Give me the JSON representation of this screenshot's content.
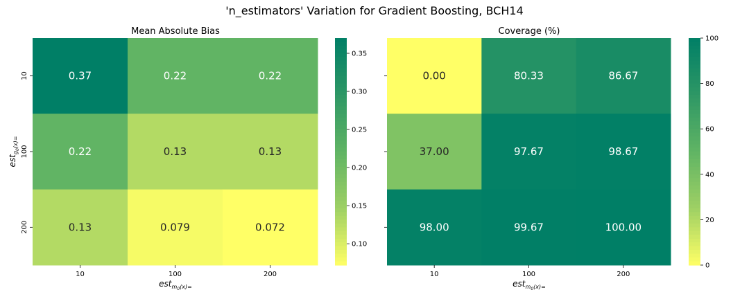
{
  "suptitle": "'n_estimators' Variation for Gradient Boosting, BCH14",
  "shared": {
    "x_label_main": "est",
    "x_label_sub": "m",
    "x_label_subsub": "0",
    "x_label_suffix": "(x)=",
    "y_label_main": "est",
    "y_label_sub": "g",
    "y_label_subsub": "0",
    "y_label_suffix": "(x)="
  },
  "colormap": [
    "#ffff66",
    "#9ed064",
    "#60b464",
    "#2e9765",
    "#007f66"
  ],
  "chart_data": [
    {
      "type": "heatmap",
      "title": "Mean Absolute Bias",
      "x_ticks": [
        "10",
        "100",
        "200"
      ],
      "y_ticks": [
        "10",
        "100",
        "200"
      ],
      "values": [
        [
          0.37,
          0.22,
          0.22
        ],
        [
          0.22,
          0.13,
          0.13
        ],
        [
          0.13,
          0.079,
          0.072
        ]
      ],
      "cell_labels": [
        [
          "0.37",
          "0.22",
          "0.22"
        ],
        [
          "0.22",
          "0.13",
          "0.13"
        ],
        [
          "0.13",
          "0.079",
          "0.072"
        ]
      ],
      "vmin": 0.072,
      "vmax": 0.37,
      "colorbar_ticks": [
        0.1,
        0.15,
        0.2,
        0.25,
        0.3,
        0.35
      ],
      "colorbar_tick_labels": [
        "0.10",
        "0.15",
        "0.20",
        "0.25",
        "0.30",
        "0.35"
      ]
    },
    {
      "type": "heatmap",
      "title": "Coverage (%)",
      "x_ticks": [
        "10",
        "100",
        "200"
      ],
      "y_ticks": [
        "10",
        "100",
        "200"
      ],
      "values": [
        [
          0.0,
          80.33,
          86.67
        ],
        [
          37.0,
          97.67,
          98.67
        ],
        [
          98.0,
          99.67,
          100.0
        ]
      ],
      "cell_labels": [
        [
          "0.00",
          "80.33",
          "86.67"
        ],
        [
          "37.00",
          "97.67",
          "98.67"
        ],
        [
          "98.00",
          "99.67",
          "100.00"
        ]
      ],
      "vmin": 0,
      "vmax": 100,
      "colorbar_ticks": [
        0,
        20,
        40,
        60,
        80,
        100
      ],
      "colorbar_tick_labels": [
        "0",
        "20",
        "40",
        "60",
        "80",
        "100"
      ]
    }
  ]
}
